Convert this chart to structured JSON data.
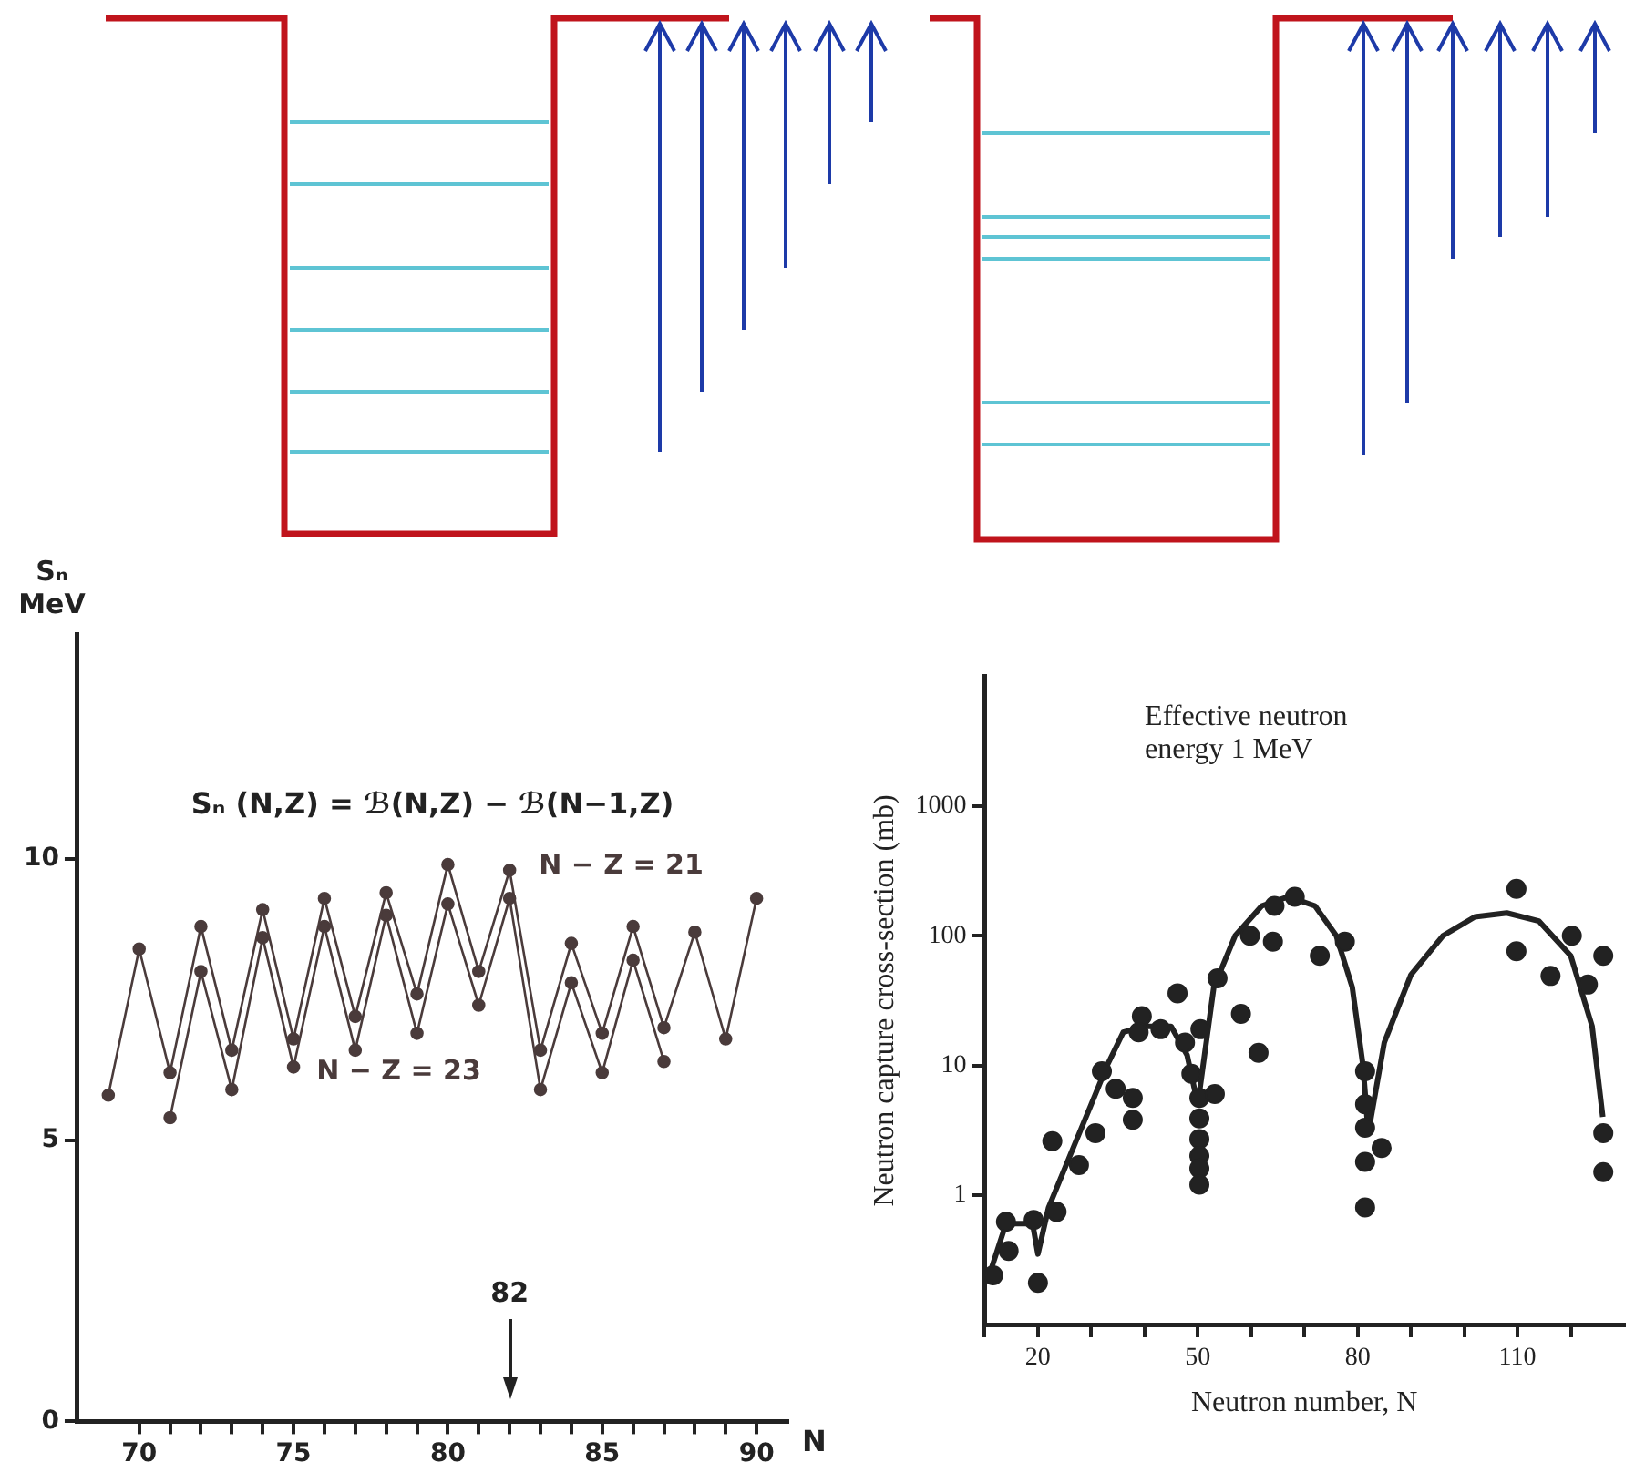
{
  "chart_data": [
    {
      "type": "line",
      "xlabel": "N",
      "ylabel": "Sₙ\nMeV",
      "annotations": [
        "Sₙ (N,Z) = ℬ(N,Z) − ℬ(N−1,Z)"
      ],
      "ref_lines": [
        {
          "axis": "x",
          "value": 82,
          "label": "82"
        }
      ],
      "xlim": [
        68,
        91
      ],
      "ylim": [
        0,
        14
      ],
      "xticks": [
        70,
        {
          "value": 71,
          "label": null
        },
        {
          "value": 72,
          "label": null
        },
        {
          "value": 73,
          "label": null
        },
        {
          "value": 74,
          "label": null
        },
        75,
        {
          "value": 76,
          "label": null
        },
        {
          "value": 77,
          "label": null
        },
        {
          "value": 78,
          "label": null
        },
        {
          "value": 79,
          "label": null
        },
        80,
        {
          "value": 81,
          "label": null
        },
        {
          "value": 82,
          "label": null
        },
        {
          "value": 83,
          "label": null
        },
        {
          "value": 84,
          "label": null
        },
        85,
        {
          "value": 86,
          "label": null
        },
        {
          "value": 87,
          "label": null
        },
        {
          "value": 88,
          "label": null
        },
        {
          "value": 89,
          "label": null
        },
        90
      ],
      "yticks": [
        0,
        5,
        10
      ],
      "grid": false,
      "legend": false,
      "marker": "circle",
      "series": [
        {
          "name": "N − Z = 21",
          "color": "#4a3b3b",
          "x": [
            69,
            70,
            71,
            72,
            73,
            74,
            75,
            76,
            77,
            78,
            79,
            80,
            81,
            82,
            83,
            84,
            85,
            86,
            87,
            88,
            89,
            90
          ],
          "values": [
            5.8,
            8.4,
            6.2,
            8.8,
            6.6,
            9.1,
            6.8,
            9.3,
            7.2,
            9.4,
            7.6,
            9.9,
            8.0,
            9.8,
            6.6,
            8.5,
            6.9,
            8.8,
            7.0,
            8.7,
            6.8,
            9.3
          ]
        },
        {
          "name": "N − Z = 23",
          "color": "#4a3b3b",
          "x": [
            71,
            72,
            73,
            74,
            75,
            76,
            77,
            78,
            79,
            80,
            81,
            82,
            83,
            84,
            85,
            86,
            87
          ],
          "values": [
            5.4,
            8.0,
            5.9,
            8.6,
            6.3,
            8.8,
            6.6,
            9.0,
            6.9,
            9.2,
            7.4,
            9.3,
            5.9,
            7.8,
            6.2,
            8.2,
            6.4
          ]
        }
      ]
    },
    {
      "type": "scatter",
      "xlabel": "Neutron number, N",
      "ylabel": "Neutron capture cross-section (mb)",
      "annotations": [
        "Effective neutron energy 1 MeV"
      ],
      "log": "y",
      "xlim": [
        10,
        130
      ],
      "ylim": [
        0.1,
        10000
      ],
      "xticks": [
        {
          "value": 10,
          "label": null
        },
        20,
        {
          "value": 30,
          "label": null
        },
        {
          "value": 40,
          "label": null
        },
        50,
        {
          "value": 60,
          "label": null
        },
        {
          "value": 70,
          "label": null
        },
        80,
        {
          "value": 90,
          "label": null
        },
        {
          "value": 100,
          "label": null
        },
        110,
        {
          "value": 120,
          "label": null
        }
      ],
      "yticks": [
        1,
        10,
        100,
        1000
      ],
      "grid": false,
      "legend": false,
      "marker": "circle",
      "series": [
        {
          "type": "scatter",
          "color": "#222222",
          "x": [
            11.6,
            14.5,
            14,
            19.2,
            20,
            23.5,
            22.7,
            27.7,
            30.8,
            32,
            34.6,
            37.8,
            37.8,
            39.5,
            38.9,
            43,
            46.2,
            47.6,
            50.5,
            48.8,
            53.7,
            58.1,
            61.4,
            59.8,
            64.1,
            64.4,
            68.2,
            72.9,
            77.6,
            82.3,
            109.8,
            109.8,
            116.2,
            120.2,
            123.2,
            126.1,
            50.3,
            50.3,
            50.3,
            50.3,
            50.3,
            50.3,
            53.2,
            81.4,
            81.4,
            81.4,
            81.4,
            81.4,
            84.5,
            126.1,
            126.1
          ],
          "values": [
            0.24,
            0.37,
            0.62,
            0.64,
            0.21,
            0.74,
            2.6,
            1.7,
            3,
            9,
            6.6,
            5.6,
            3.8,
            24,
            18,
            19,
            36,
            15,
            19,
            8.6,
            47,
            25,
            12.5,
            100,
            90,
            170,
            200,
            70,
            90,
            null,
            230,
            76,
            49,
            100,
            42,
            70,
            5.6,
            3.9,
            2.7,
            2,
            1.6,
            1.2,
            6,
            9,
            5,
            3.3,
            1.8,
            0.8,
            2.3,
            3,
            1.5
          ]
        },
        {
          "type": "line",
          "marker": "none",
          "color": "#222222",
          "x": [
            11,
            14,
            19,
            20,
            22,
            26,
            30,
            33,
            36,
            40,
            45,
            48,
            50,
            53,
            57,
            62,
            67,
            72,
            76,
            79,
            81,
            82,
            85,
            90,
            96,
            102,
            108,
            114,
            120,
            124,
            126
          ],
          "values": [
            0.25,
            0.6,
            0.6,
            0.35,
            0.8,
            2,
            5,
            10,
            18,
            20,
            20,
            12,
            5,
            40,
            100,
            170,
            200,
            170,
            100,
            40,
            10,
            3,
            15,
            50,
            100,
            140,
            150,
            130,
            70,
            20,
            4
          ]
        }
      ]
    }
  ]
}
